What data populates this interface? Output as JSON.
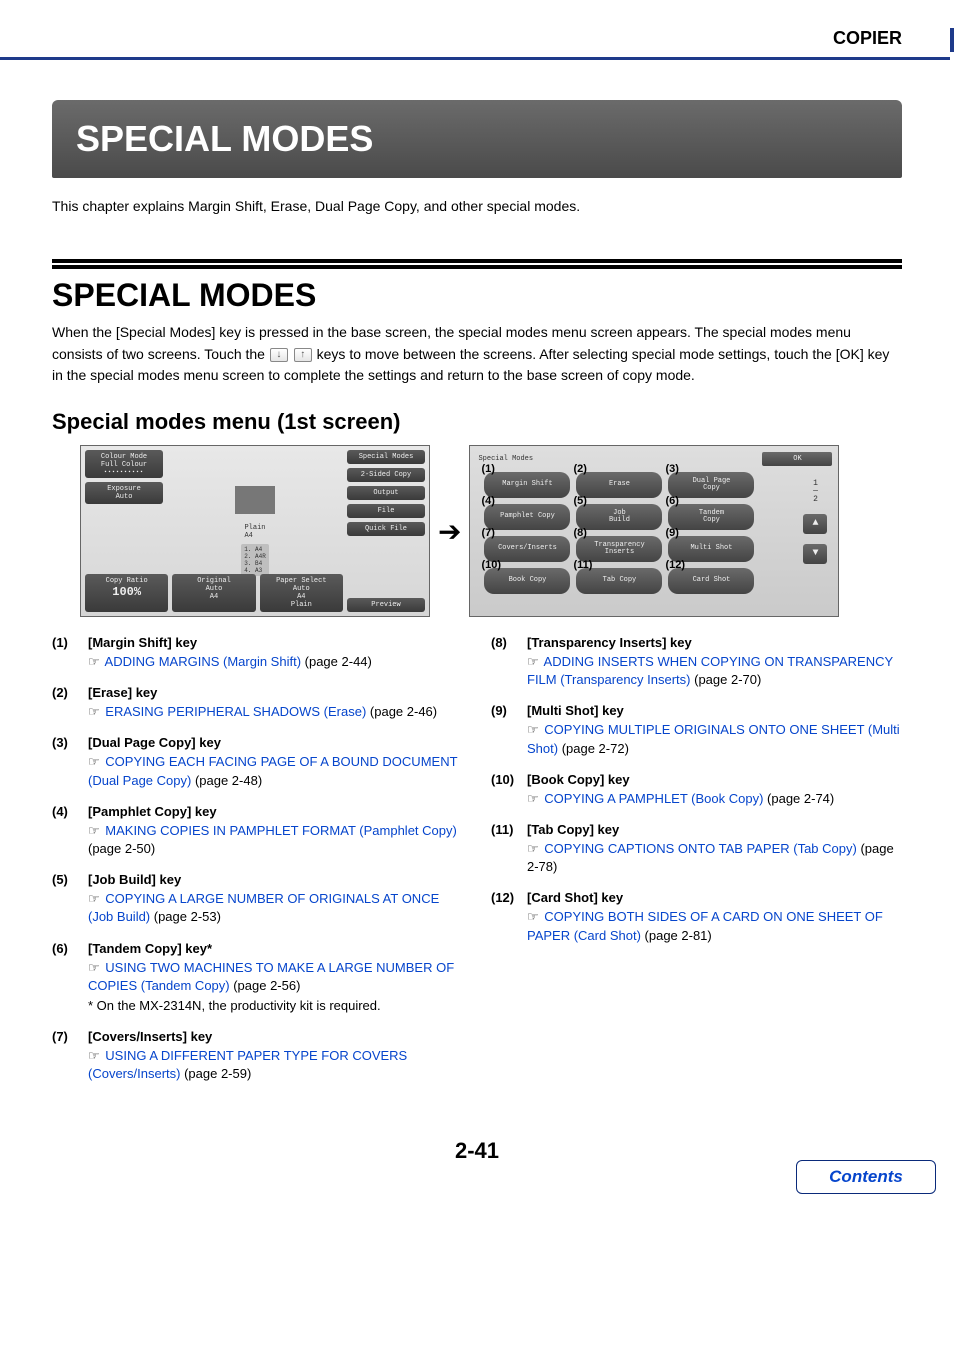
{
  "colors": {
    "header_bar": "#1e3a8a",
    "title_bg_top": "#6b6b6b",
    "title_bg_bottom": "#4a4a4a",
    "link": "#0645cc",
    "screen_btn_top": "#6a6a6a",
    "screen_btn_bottom": "#444444",
    "screen_bg_top": "#dedede",
    "screen_bg_bottom": "#cacaca"
  },
  "doc_section": "COPIER",
  "chapter_title": "SPECIAL MODES",
  "chapter_intro": "This chapter explains Margin Shift, Erase, Dual Page Copy, and other special modes.",
  "section": {
    "title": "SPECIAL MODES",
    "para_a": "When the [Special Modes] key is pressed in the base screen, the special modes menu screen appears. The special modes menu consists of two screens. Touch the ",
    "para_b": " keys to move between the screens. After selecting special mode settings, touch the [OK] key in the special modes menu screen to complete the settings and return to the base screen of copy mode.",
    "subheading": "Special modes menu (1st screen)"
  },
  "copier_screen": {
    "left": {
      "colour_mode_label": "Colour Mode",
      "colour_mode_value": "Full Colour",
      "exposure_label": "Exposure",
      "exposure_value": "Auto",
      "copy_ratio_label": "Copy Ratio",
      "copy_ratio_value": "100%"
    },
    "mid": {
      "plain_label": "Plain",
      "paper_size": "A4",
      "paper_list": [
        "1. A4",
        "2. A4R",
        "3. B4",
        "4. A3"
      ]
    },
    "bottom": {
      "original_label": "Original",
      "original_value": "Auto",
      "original_sub": "A4",
      "paper_select_label": "Paper Select",
      "paper_select_value": "Auto",
      "paper_select_sub1": "A4",
      "paper_select_sub2": "Plain"
    },
    "right": [
      "Special Modes",
      "2-Sided Copy",
      "Output",
      "File",
      "Quick File",
      "Preview"
    ]
  },
  "special_modes_screen": {
    "title": "Special Modes",
    "ok": "OK",
    "page_indicator_top": "1",
    "page_indicator_bottom": "2",
    "cells": [
      {
        "num": "(1)",
        "label": "Margin Shift"
      },
      {
        "num": "(2)",
        "label": "Erase"
      },
      {
        "num": "(3)",
        "label": "Dual Page\nCopy"
      },
      {
        "num": "(4)",
        "label": "Pamphlet Copy"
      },
      {
        "num": "(5)",
        "label": "Job\nBuild"
      },
      {
        "num": "(6)",
        "label": "Tandem\nCopy"
      },
      {
        "num": "(7)",
        "label": "Covers/Inserts"
      },
      {
        "num": "(8)",
        "label": "Transparency\nInserts"
      },
      {
        "num": "(9)",
        "label": "Multi Shot"
      },
      {
        "num": "(10)",
        "label": "Book Copy"
      },
      {
        "num": "(11)",
        "label": "Tab Copy"
      },
      {
        "num": "(12)",
        "label": "Card Shot"
      }
    ]
  },
  "key_list": {
    "left_col": [
      {
        "num": "(1)",
        "title": "[Margin Shift] key",
        "link": "ADDING MARGINS (Margin Shift)",
        "suffix": " (page 2-44)"
      },
      {
        "num": "(2)",
        "title": "[Erase] key",
        "link": "ERASING PERIPHERAL SHADOWS (Erase)",
        "suffix": " (page 2-46)"
      },
      {
        "num": "(3)",
        "title": "[Dual Page Copy] key",
        "link": "COPYING EACH FACING PAGE OF A BOUND DOCUMENT (Dual Page Copy)",
        "suffix": " (page 2-48)"
      },
      {
        "num": "(4)",
        "title": "[Pamphlet Copy] key",
        "link": "MAKING COPIES IN PAMPHLET FORMAT (Pamphlet Copy)",
        "suffix": " (page 2-50)"
      },
      {
        "num": "(5)",
        "title": "[Job Build] key",
        "link": "COPYING A LARGE NUMBER OF ORIGINALS AT ONCE (Job Build)",
        "suffix": " (page 2-53)"
      },
      {
        "num": "(6)",
        "title": "[Tandem Copy] key*",
        "link": "USING TWO MACHINES TO MAKE A LARGE NUMBER OF COPIES (Tandem Copy)",
        "suffix": " (page 2-56)",
        "note": "* On the MX-2314N, the productivity kit is required."
      },
      {
        "num": "(7)",
        "title": "[Covers/Inserts] key",
        "link": "USING A DIFFERENT PAPER TYPE FOR COVERS (Covers/Inserts)",
        "suffix": " (page 2-59)"
      }
    ],
    "right_col": [
      {
        "num": "(8)",
        "title": "[Transparency Inserts] key",
        "link": "ADDING INSERTS WHEN COPYING ON TRANSPARENCY FILM (Transparency Inserts)",
        "suffix": " (page 2-70)"
      },
      {
        "num": "(9)",
        "title": "[Multi Shot] key",
        "link": "COPYING MULTIPLE ORIGINALS ONTO ONE SHEET (Multi Shot)",
        "suffix": " (page 2-72)"
      },
      {
        "num": "(10)",
        "title": "[Book Copy] key",
        "link": "COPYING A PAMPHLET (Book Copy)",
        "suffix": " (page 2-74)"
      },
      {
        "num": "(11)",
        "title": "[Tab Copy] key",
        "link": "COPYING CAPTIONS ONTO TAB PAPER (Tab Copy)",
        "suffix": " (page 2-78)"
      },
      {
        "num": "(12)",
        "title": "[Card Shot] key",
        "link": "COPYING BOTH SIDES OF A CARD ON ONE SHEET OF PAPER (Card Shot)",
        "suffix": " (page 2-81)"
      }
    ]
  },
  "page_number": "2-41",
  "contents_label": "Contents"
}
